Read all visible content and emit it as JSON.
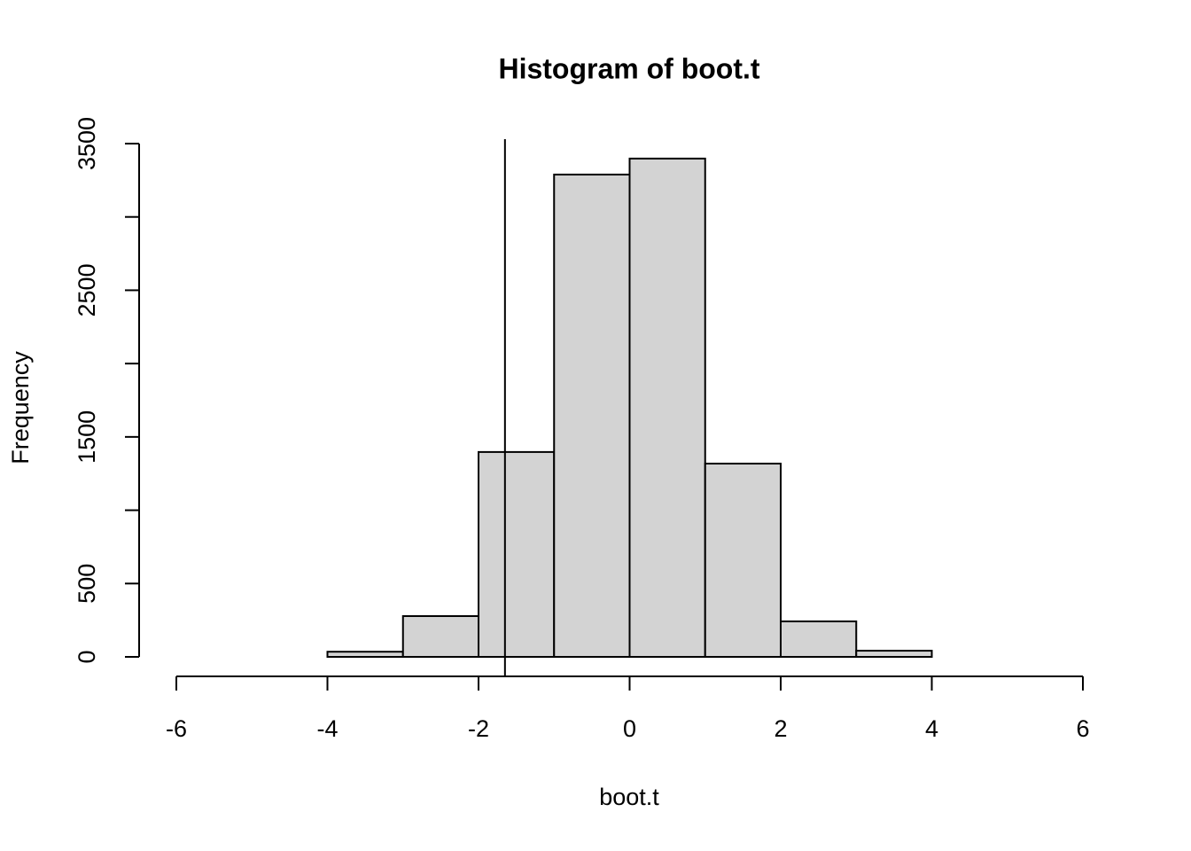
{
  "chart_data": {
    "type": "histogram",
    "title": "Histogram of boot.t",
    "x_label": "boot.t",
    "y_label": "Frequency",
    "bins": [
      -6,
      -5,
      -4,
      -3,
      -2,
      -1,
      0,
      1,
      2,
      3,
      4,
      5,
      6
    ],
    "counts": [
      0,
      0,
      35,
      278,
      1397,
      3289,
      3398,
      1318,
      242,
      42,
      0,
      0
    ],
    "color": "#d3d3d3",
    "vline": -1.65,
    "xlim": [
      -6,
      6
    ],
    "xticks": [
      -6,
      -4,
      -2,
      0,
      2,
      4,
      6
    ],
    "ylim": [
      0,
      3500
    ],
    "yticks": [
      0,
      500,
      {
        "value": 1000,
        "label": null
      },
      1500,
      {
        "value": 2000,
        "label": null
      },
      2500,
      {
        "value": 3000,
        "label": null
      },
      3500
    ]
  }
}
